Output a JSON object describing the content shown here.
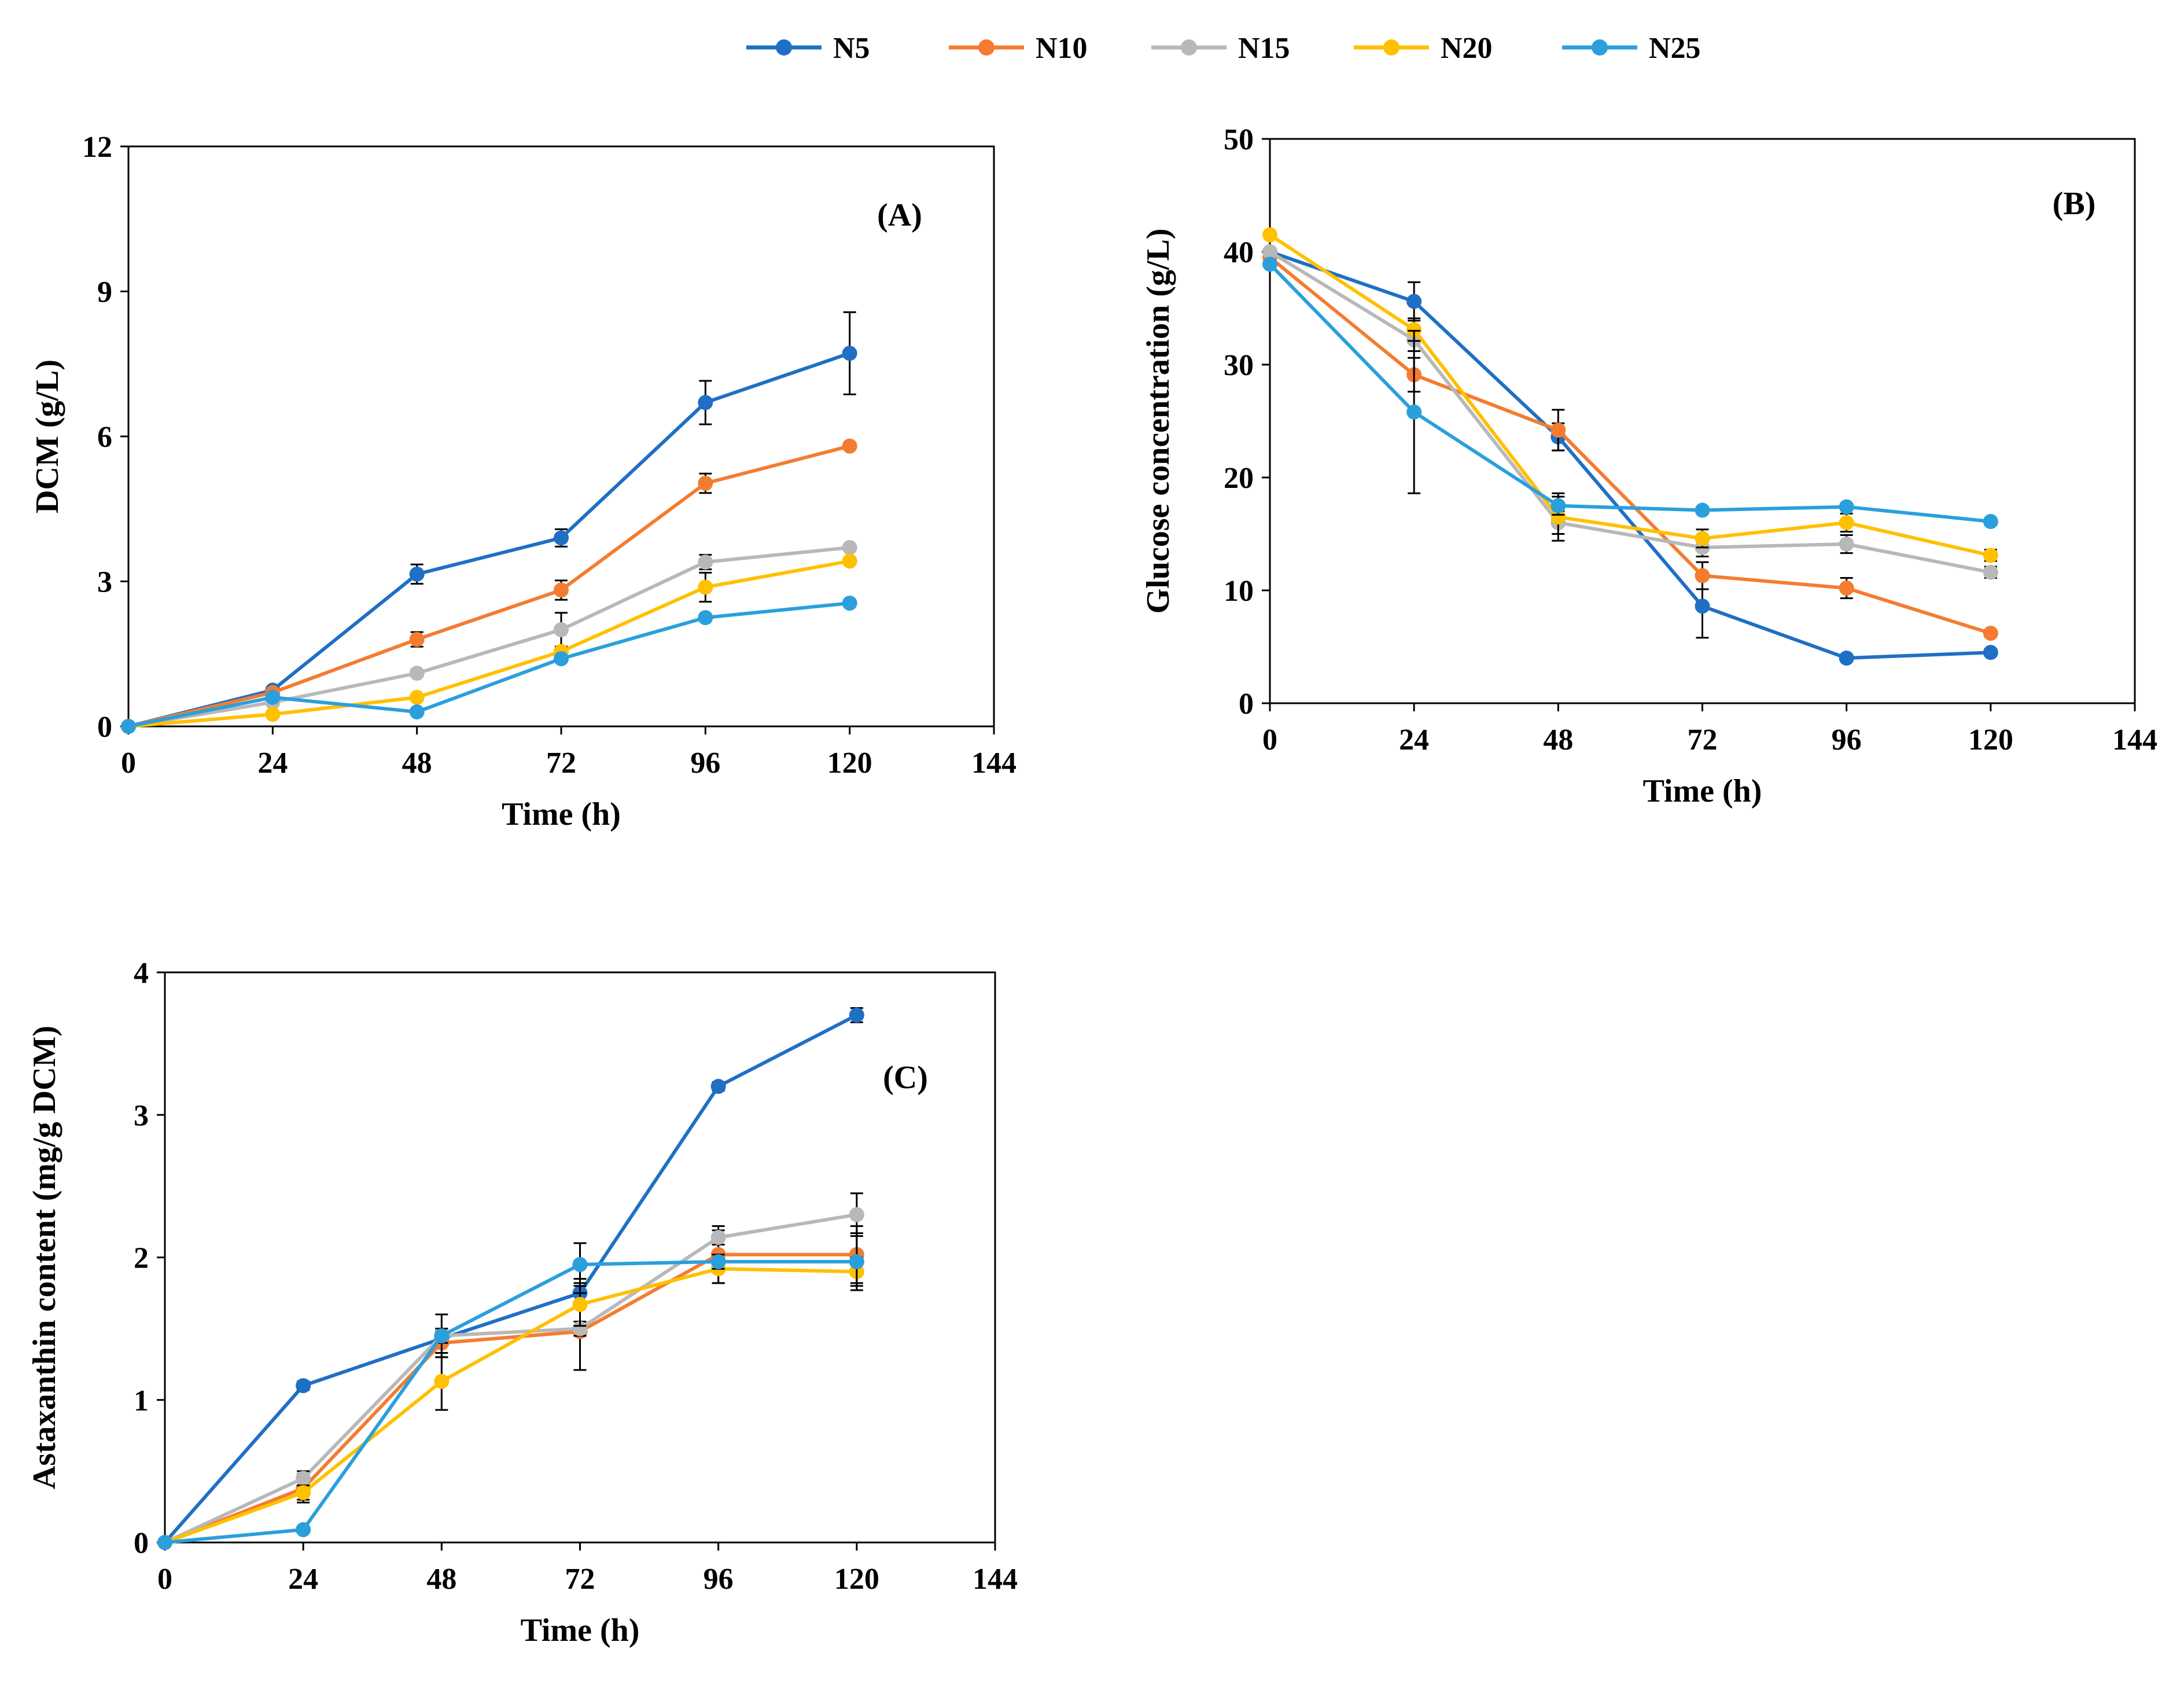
{
  "legend": [
    {
      "name": "N5",
      "color": "#1f6fc5"
    },
    {
      "name": "N10",
      "color": "#f47c30"
    },
    {
      "name": "N15",
      "color": "#b8b8b8"
    },
    {
      "name": "N20",
      "color": "#ffc000"
    },
    {
      "name": "N25",
      "color": "#2b9fdc"
    }
  ],
  "chart_data": [
    {
      "type": "line",
      "panel_label": "(A)",
      "xlabel": "Time (h)",
      "ylabel": "DCM  (g/L)",
      "x": [
        0,
        24,
        48,
        72,
        96,
        120
      ],
      "xticks": [
        "0",
        "24",
        "48",
        "72",
        "96",
        "120",
        "144"
      ],
      "yticks": [
        "0",
        "3",
        "6",
        "9",
        "12"
      ],
      "xlim": [
        0,
        144
      ],
      "ylim": [
        0,
        12
      ],
      "series": [
        {
          "name": "N5",
          "values": [
            0,
            0.75,
            3.15,
            3.9,
            6.7,
            7.72
          ],
          "errors": [
            0,
            0.05,
            0.2,
            0.18,
            0.45,
            0.85
          ]
        },
        {
          "name": "N10",
          "values": [
            0,
            0.7,
            1.8,
            2.82,
            5.03,
            5.8
          ],
          "errors": [
            0,
            0.05,
            0.15,
            0.2,
            0.2,
            0.05
          ]
        },
        {
          "name": "N15",
          "values": [
            0,
            0.5,
            1.1,
            2.0,
            3.4,
            3.7
          ],
          "errors": [
            0,
            0.05,
            0.05,
            0.35,
            0.15,
            0.05
          ]
        },
        {
          "name": "N20",
          "values": [
            0,
            0.25,
            0.6,
            1.55,
            2.88,
            3.42
          ],
          "errors": [
            0,
            0.03,
            0.05,
            0.1,
            0.3,
            0.05
          ]
        },
        {
          "name": "N25",
          "values": [
            0,
            0.6,
            0.3,
            1.4,
            2.25,
            2.55
          ],
          "errors": [
            0,
            0.03,
            0.03,
            0.05,
            0.05,
            0.05
          ]
        }
      ]
    },
    {
      "type": "line",
      "panel_label": "(B)",
      "xlabel": "Time (h)",
      "ylabel": "Glucose concentration (g/L)",
      "x": [
        0,
        24,
        48,
        72,
        96,
        120
      ],
      "xticks": [
        "0",
        "24",
        "48",
        "72",
        "96",
        "120",
        "144"
      ],
      "yticks": [
        "0",
        "10",
        "20",
        "30",
        "40",
        "50"
      ],
      "xlim": [
        0,
        144
      ],
      "ylim": [
        0,
        50
      ],
      "series": [
        {
          "name": "N5",
          "values": [
            40,
            35.6,
            23.6,
            8.6,
            4.0,
            4.5
          ],
          "errors": [
            0,
            1.7,
            1.2,
            2.8,
            0.3,
            0.3
          ]
        },
        {
          "name": "N10",
          "values": [
            39.5,
            29.1,
            24.2,
            11.3,
            10.2,
            6.2
          ],
          "errors": [
            0,
            1.5,
            1.8,
            1.2,
            0.9,
            0.3
          ]
        },
        {
          "name": "N15",
          "values": [
            40,
            32.2,
            16.0,
            13.8,
            14.1,
            11.6
          ],
          "errors": [
            0,
            1.0,
            1.0,
            0.8,
            0.8,
            0.5
          ]
        },
        {
          "name": "N20",
          "values": [
            41.5,
            33.1,
            16.5,
            14.6,
            16.0,
            13.1
          ],
          "errors": [
            0,
            1.0,
            2.1,
            0.8,
            0.8,
            0.5
          ]
        },
        {
          "name": "N25",
          "values": [
            38.9,
            25.8,
            17.5,
            17.1,
            17.4,
            16.1
          ],
          "errors": [
            0,
            7.2,
            0.8,
            0.3,
            0.3,
            0.3
          ]
        }
      ]
    },
    {
      "type": "line",
      "panel_label": "(C)",
      "xlabel": "Time (h)",
      "ylabel": "Astaxanthin content (mg/g DCM)",
      "x": [
        0,
        24,
        48,
        72,
        96,
        120
      ],
      "xticks": [
        "0",
        "24",
        "48",
        "72",
        "96",
        "120",
        "144"
      ],
      "yticks": [
        "0",
        "1",
        "2",
        "3",
        "4"
      ],
      "xlim": [
        0,
        144
      ],
      "ylim": [
        0,
        4
      ],
      "series": [
        {
          "name": "N5",
          "values": [
            0,
            1.1,
            1.43,
            1.75,
            3.2,
            3.7
          ],
          "errors": [
            0,
            0.03,
            0.05,
            0.1,
            0.03,
            0.05
          ]
        },
        {
          "name": "N10",
          "values": [
            0,
            0.38,
            1.4,
            1.48,
            2.02,
            2.02
          ],
          "errors": [
            0,
            0.1,
            0.1,
            0.27,
            0.2,
            0.2
          ]
        },
        {
          "name": "N15",
          "values": [
            0,
            0.45,
            1.45,
            1.5,
            2.14,
            2.3
          ],
          "errors": [
            0,
            0.05,
            0.05,
            0.05,
            0.05,
            0.15
          ]
        },
        {
          "name": "N20",
          "values": [
            0,
            0.35,
            1.13,
            1.67,
            1.92,
            1.9
          ],
          "errors": [
            0,
            0.05,
            0.2,
            0.15,
            0.1,
            0.1
          ]
        },
        {
          "name": "N25",
          "values": [
            0,
            0.09,
            1.45,
            1.95,
            1.97,
            1.97
          ],
          "errors": [
            0,
            0.02,
            0.15,
            0.15,
            0.05,
            0.2
          ]
        }
      ]
    }
  ]
}
